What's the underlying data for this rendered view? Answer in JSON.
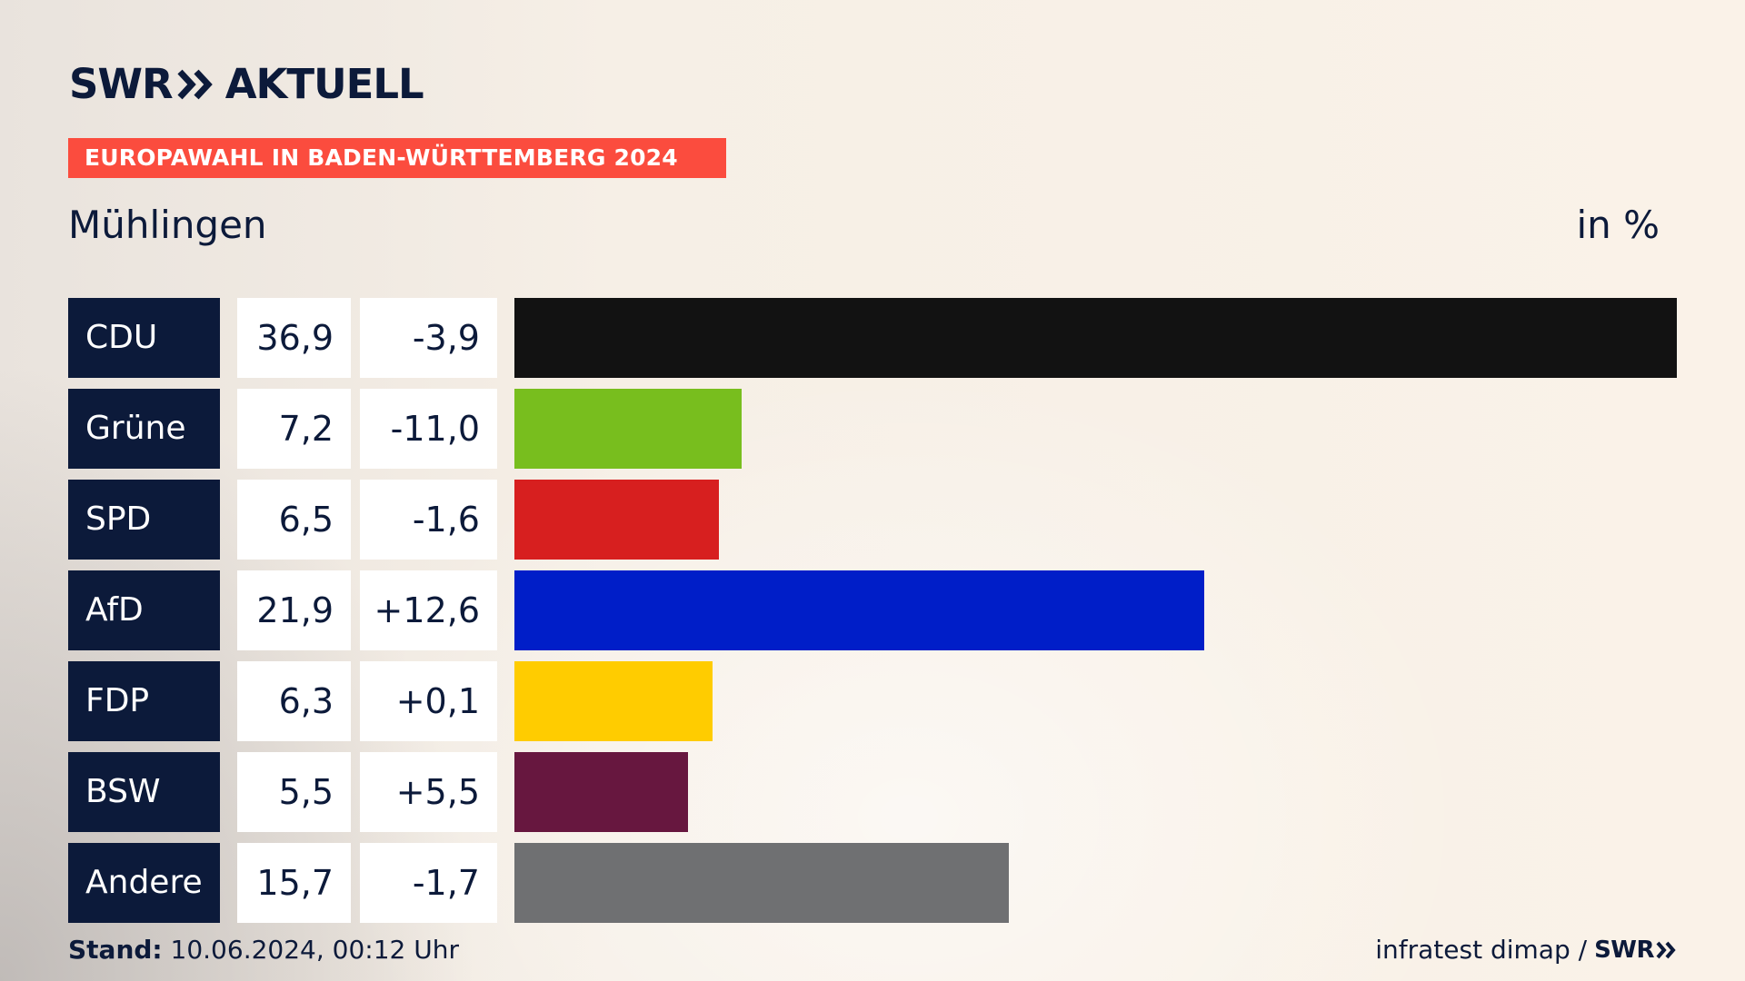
{
  "header": {
    "brand_left": "SWR",
    "brand_right": "AKTUELL",
    "chevron_icon": "double-chevron-right-icon",
    "banner": "EUROPAWAHL IN BADEN-WÜRTTEMBERG 2024",
    "place": "Mühlingen",
    "unit": "in %"
  },
  "colors": {
    "navy": "#0c1a3a",
    "banner": "#fb4c3e",
    "CDU": "#121212",
    "Grüne": "#78be1e",
    "SPD": "#d71f1f",
    "AfD": "#001ec8",
    "FDP": "#ffcc00",
    "BSW": "#67173f",
    "Andere": "#6f7072"
  },
  "chart_data": {
    "type": "bar",
    "categories": [
      "CDU",
      "Grüne",
      "SPD",
      "AfD",
      "FDP",
      "BSW",
      "Andere"
    ],
    "values": [
      36.9,
      7.2,
      6.5,
      21.9,
      6.3,
      5.5,
      15.7
    ],
    "value_labels": [
      "36,9",
      "7,2",
      "6,5",
      "21,9",
      "6,3",
      "5,5",
      "15,7"
    ],
    "diff_values": [
      -3.9,
      -11.0,
      -1.6,
      12.6,
      0.1,
      5.5,
      -1.7
    ],
    "diff_labels": [
      "-3,9",
      "-11,0",
      "-1,6",
      "+12,6",
      "+0,1",
      "+5,5",
      "-1,7"
    ],
    "colors": [
      "#121212",
      "#78be1e",
      "#d71f1f",
      "#001ec8",
      "#ffcc00",
      "#67173f",
      "#6f7072"
    ],
    "orientation": "horizontal",
    "xlim": [
      0,
      36.9
    ],
    "grid": false,
    "legend": "none"
  },
  "footer": {
    "stand_label": "Stand:",
    "stand_value": "10.06.2024, 00:12 Uhr",
    "source": "infratest dimap /",
    "source_logo": "SWR"
  }
}
